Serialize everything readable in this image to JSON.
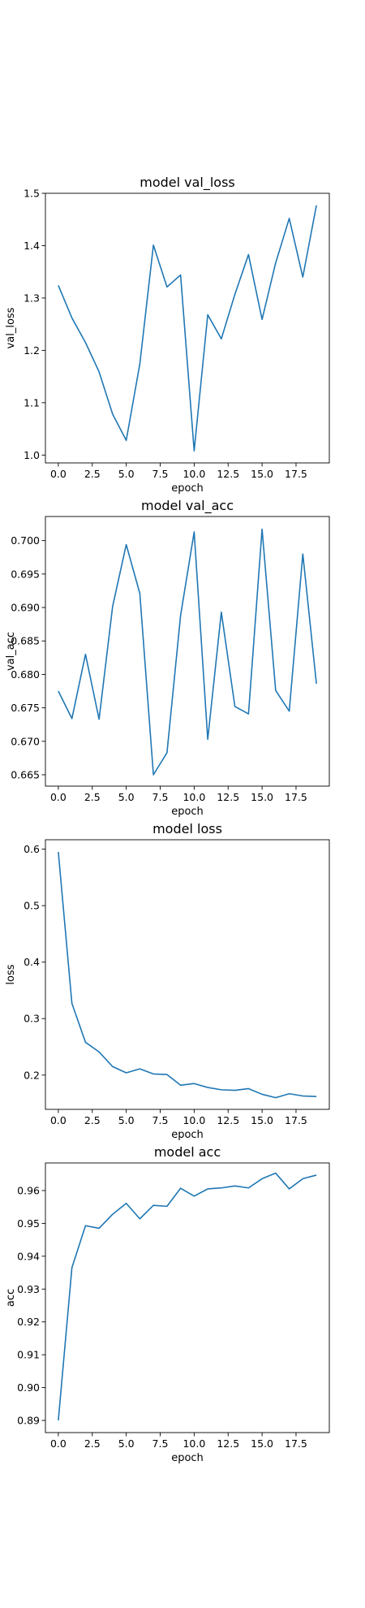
{
  "chart_data": [
    {
      "type": "line",
      "title": "model val_loss",
      "xlabel": "epoch",
      "ylabel": "val_loss",
      "xlim": [
        -0.95,
        19.95
      ],
      "ylim": [
        0.985,
        1.5
      ],
      "xticks": [
        0.0,
        2.5,
        5.0,
        7.5,
        10.0,
        12.5,
        15.0,
        17.5
      ],
      "xtick_labels": [
        "0.0",
        "2.5",
        "5.0",
        "7.5",
        "10.0",
        "12.5",
        "15.0",
        "17.5"
      ],
      "yticks": [
        1.0,
        1.1,
        1.2,
        1.3,
        1.4,
        1.5
      ],
      "ytick_labels": [
        "1.0",
        "1.1",
        "1.2",
        "1.3",
        "1.4",
        "1.5"
      ],
      "grid": false,
      "color": "#1f77b4",
      "x": [
        0,
        1,
        2,
        3,
        4,
        5,
        6,
        7,
        8,
        9,
        10,
        11,
        12,
        13,
        14,
        15,
        16,
        17,
        18,
        19
      ],
      "y": [
        1.324,
        1.262,
        1.215,
        1.159,
        1.078,
        1.028,
        1.174,
        1.401,
        1.321,
        1.344,
        1.008,
        1.268,
        1.222,
        1.307,
        1.383,
        1.259,
        1.367,
        1.452,
        1.34,
        1.477
      ]
    },
    {
      "type": "line",
      "title": "model val_acc",
      "xlabel": "epoch",
      "ylabel": "val_acc",
      "xlim": [
        -0.95,
        19.95
      ],
      "ylim": [
        0.6633,
        0.7036
      ],
      "xticks": [
        0.0,
        2.5,
        5.0,
        7.5,
        10.0,
        12.5,
        15.0,
        17.5
      ],
      "xtick_labels": [
        "0.0",
        "2.5",
        "5.0",
        "7.5",
        "10.0",
        "12.5",
        "15.0",
        "17.5"
      ],
      "yticks": [
        0.665,
        0.67,
        0.675,
        0.68,
        0.685,
        0.69,
        0.695,
        0.7
      ],
      "ytick_labels": [
        "0.665",
        "0.670",
        "0.675",
        "0.680",
        "0.685",
        "0.690",
        "0.695",
        "0.700"
      ],
      "grid": false,
      "color": "#1f77b4",
      "x": [
        0,
        1,
        2,
        3,
        4,
        5,
        6,
        7,
        8,
        9,
        10,
        11,
        12,
        13,
        14,
        15,
        16,
        17,
        18,
        19
      ],
      "y": [
        0.6775,
        0.6734,
        0.683,
        0.6733,
        0.6902,
        0.6994,
        0.6921,
        0.665,
        0.6683,
        0.6888,
        0.7013,
        0.6703,
        0.6893,
        0.6752,
        0.6741,
        0.7017,
        0.6776,
        0.6745,
        0.698,
        0.6786
      ]
    },
    {
      "type": "line",
      "title": "model loss",
      "xlabel": "epoch",
      "ylabel": "loss",
      "xlim": [
        -0.95,
        19.95
      ],
      "ylim": [
        0.1393,
        0.6167
      ],
      "xticks": [
        0.0,
        2.5,
        5.0,
        7.5,
        10.0,
        12.5,
        15.0,
        17.5
      ],
      "xtick_labels": [
        "0.0",
        "2.5",
        "5.0",
        "7.5",
        "10.0",
        "12.5",
        "15.0",
        "17.5"
      ],
      "yticks": [
        0.2,
        0.3,
        0.4,
        0.5,
        0.6
      ],
      "ytick_labels": [
        "0.2",
        "0.3",
        "0.4",
        "0.5",
        "0.6"
      ],
      "grid": false,
      "color": "#1f77b4",
      "x": [
        0,
        1,
        2,
        3,
        4,
        5,
        6,
        7,
        8,
        9,
        10,
        11,
        12,
        13,
        14,
        15,
        16,
        17,
        18,
        19
      ],
      "y": [
        0.595,
        0.327,
        0.258,
        0.241,
        0.215,
        0.204,
        0.211,
        0.202,
        0.201,
        0.182,
        0.185,
        0.178,
        0.174,
        0.173,
        0.176,
        0.166,
        0.16,
        0.167,
        0.163,
        0.162
      ]
    },
    {
      "type": "line",
      "title": "model acc",
      "xlabel": "epoch",
      "ylabel": "acc",
      "xlim": [
        -0.95,
        19.95
      ],
      "ylim": [
        0.8863,
        0.9684
      ],
      "xticks": [
        0.0,
        2.5,
        5.0,
        7.5,
        10.0,
        12.5,
        15.0,
        17.5
      ],
      "xtick_labels": [
        "0.0",
        "2.5",
        "5.0",
        "7.5",
        "10.0",
        "12.5",
        "15.0",
        "17.5"
      ],
      "yticks": [
        0.89,
        0.9,
        0.91,
        0.92,
        0.93,
        0.94,
        0.95,
        0.96
      ],
      "ytick_labels": [
        "0.89",
        "0.90",
        "0.91",
        "0.92",
        "0.93",
        "0.94",
        "0.95",
        "0.96"
      ],
      "grid": false,
      "color": "#1f77b4",
      "x": [
        0,
        1,
        2,
        3,
        4,
        5,
        6,
        7,
        8,
        9,
        10,
        11,
        12,
        13,
        14,
        15,
        16,
        17,
        18,
        19
      ],
      "y": [
        0.89,
        0.9365,
        0.9493,
        0.9485,
        0.9528,
        0.9561,
        0.9514,
        0.9555,
        0.9552,
        0.9607,
        0.9583,
        0.9605,
        0.9608,
        0.9614,
        0.9608,
        0.9636,
        0.9653,
        0.9605,
        0.9636,
        0.9647
      ]
    }
  ]
}
